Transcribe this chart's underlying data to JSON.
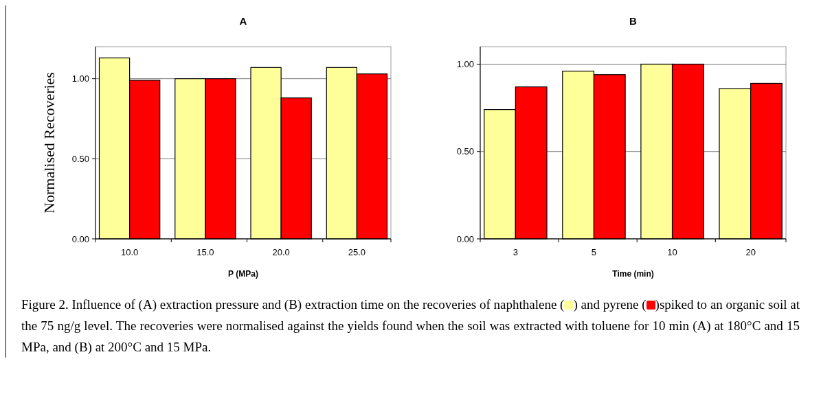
{
  "chart_data": [
    {
      "type": "bar",
      "title": "A",
      "xlabel": "P (MPa)",
      "ylabel": "Normalised Recoveries",
      "categories": [
        "10.0",
        "15.0",
        "20.0",
        "25.0"
      ],
      "series": [
        {
          "color": "#ffff99",
          "values": [
            1.13,
            1.0,
            1.07,
            1.07
          ]
        },
        {
          "color": "#ff0000",
          "values": [
            0.99,
            1.0,
            0.88,
            1.03
          ]
        }
      ],
      "ylim": [
        0,
        1.2
      ],
      "yticks": [
        {
          "value": 0,
          "label": "0.00"
        },
        {
          "value": 0.5,
          "label": "0.50"
        },
        {
          "value": 1,
          "label": "1.00"
        }
      ],
      "grid": "y",
      "annotations": [
        "Figure 2. Influence of (A) extraction pressure and (B) extraction time on the recoveries of naphthalene (",
        ") and pyrene (",
        ")spiked to an organic soil at the 75 ng/g level. The recoveries were normalised against the yields found when the soil was extracted with toluene for 10 min (A) at 180°C and 15 MPa, and (B) at 200°C and 15 MPa."
      ]
    },
    {
      "type": "bar",
      "title": "B",
      "xlabel": "Time (min)",
      "categories": [
        "3",
        "5",
        "10",
        "20"
      ],
      "series": [
        {
          "color": "#ffff99",
          "values": [
            0.74,
            0.96,
            1.0,
            0.86
          ]
        },
        {
          "color": "#ff0000",
          "values": [
            0.87,
            0.94,
            1.0,
            0.89
          ]
        }
      ],
      "ylim": [
        0,
        1.1
      ],
      "yticks": [
        {
          "value": 0,
          "label": "0.00"
        },
        {
          "value": 0.5,
          "label": "0.50"
        },
        {
          "value": 1,
          "label": "1.00"
        }
      ],
      "grid": "y"
    }
  ]
}
